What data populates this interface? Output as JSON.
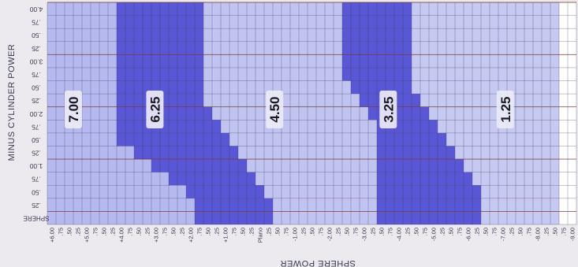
{
  "chart_data": {
    "type": "heatmap",
    "title": "",
    "xlabel": "SPHERE POWER",
    "ylabel": "MINUS CYLINDER POWER",
    "y_corner_label": "SPHERE",
    "x_tick_labels": [
      "+6.00",
      ".75",
      ".50",
      ".25",
      "+5.00",
      ".75",
      ".50",
      ".25",
      "+4.00",
      ".75",
      ".50",
      ".25",
      "+3.00",
      ".75",
      ".50",
      ".25",
      "+2.00",
      ".75",
      ".50",
      ".25",
      "+1.00",
      ".75",
      ".50",
      ".25",
      "Plano",
      ".25",
      ".50",
      ".75",
      "-1.00",
      ".25",
      ".50",
      ".75",
      "-2.00",
      ".25",
      ".50",
      ".75",
      "-3.00",
      ".25",
      ".50",
      ".75",
      "-4.00",
      ".25",
      ".50",
      ".75",
      "-5.00",
      ".25",
      ".50",
      ".75",
      "-6.00",
      ".25",
      ".50",
      ".75",
      "-7.00",
      ".25",
      ".50",
      ".75",
      "-8.00",
      ".25",
      ".50",
      ".75",
      "-9.00"
    ],
    "y_tick_labels": [
      "4.00",
      ".75",
      ".50",
      ".25",
      "3.00",
      ".75",
      ".50",
      ".25",
      "2.00",
      ".75",
      ".50",
      ".25",
      "1.00",
      ".75",
      ".50",
      ".25",
      "SPHERE"
    ],
    "zones": [
      {
        "label": "7.00",
        "color": "#b6b9ef",
        "stop_sphere_col_by_row": [
          8,
          8,
          8,
          8,
          8,
          8,
          8,
          8,
          8,
          8,
          8,
          10,
          12,
          14,
          16,
          17,
          17
        ]
      },
      {
        "label": "6.25",
        "color": "#5a57d6",
        "stop_sphere_col_by_row": [
          18,
          18,
          18,
          18,
          18,
          18,
          18,
          18,
          19,
          20,
          21,
          22,
          23,
          24,
          25,
          26,
          26
        ]
      },
      {
        "label": "4.50",
        "color": "#c1c4f1",
        "stop_sphere_col_by_row": [
          34,
          34,
          34,
          34,
          34,
          34,
          35,
          36,
          37,
          38,
          38,
          38,
          38,
          38,
          38,
          38,
          38
        ]
      },
      {
        "label": "3.25",
        "color": "#5a57d6",
        "stop_sphere_col_by_row": [
          42,
          42,
          42,
          42,
          42,
          42,
          42,
          43,
          44,
          45,
          46,
          47,
          48,
          49,
          50,
          50,
          50
        ]
      },
      {
        "label": "1.25",
        "color": "#c6c9f2",
        "stop_sphere_col_by_row": [
          59,
          59,
          59,
          59,
          59,
          59,
          59,
          59,
          59,
          59,
          59,
          59,
          59,
          59,
          59,
          59,
          59
        ]
      }
    ],
    "beyond_color": "#ffffff",
    "grid": true
  }
}
